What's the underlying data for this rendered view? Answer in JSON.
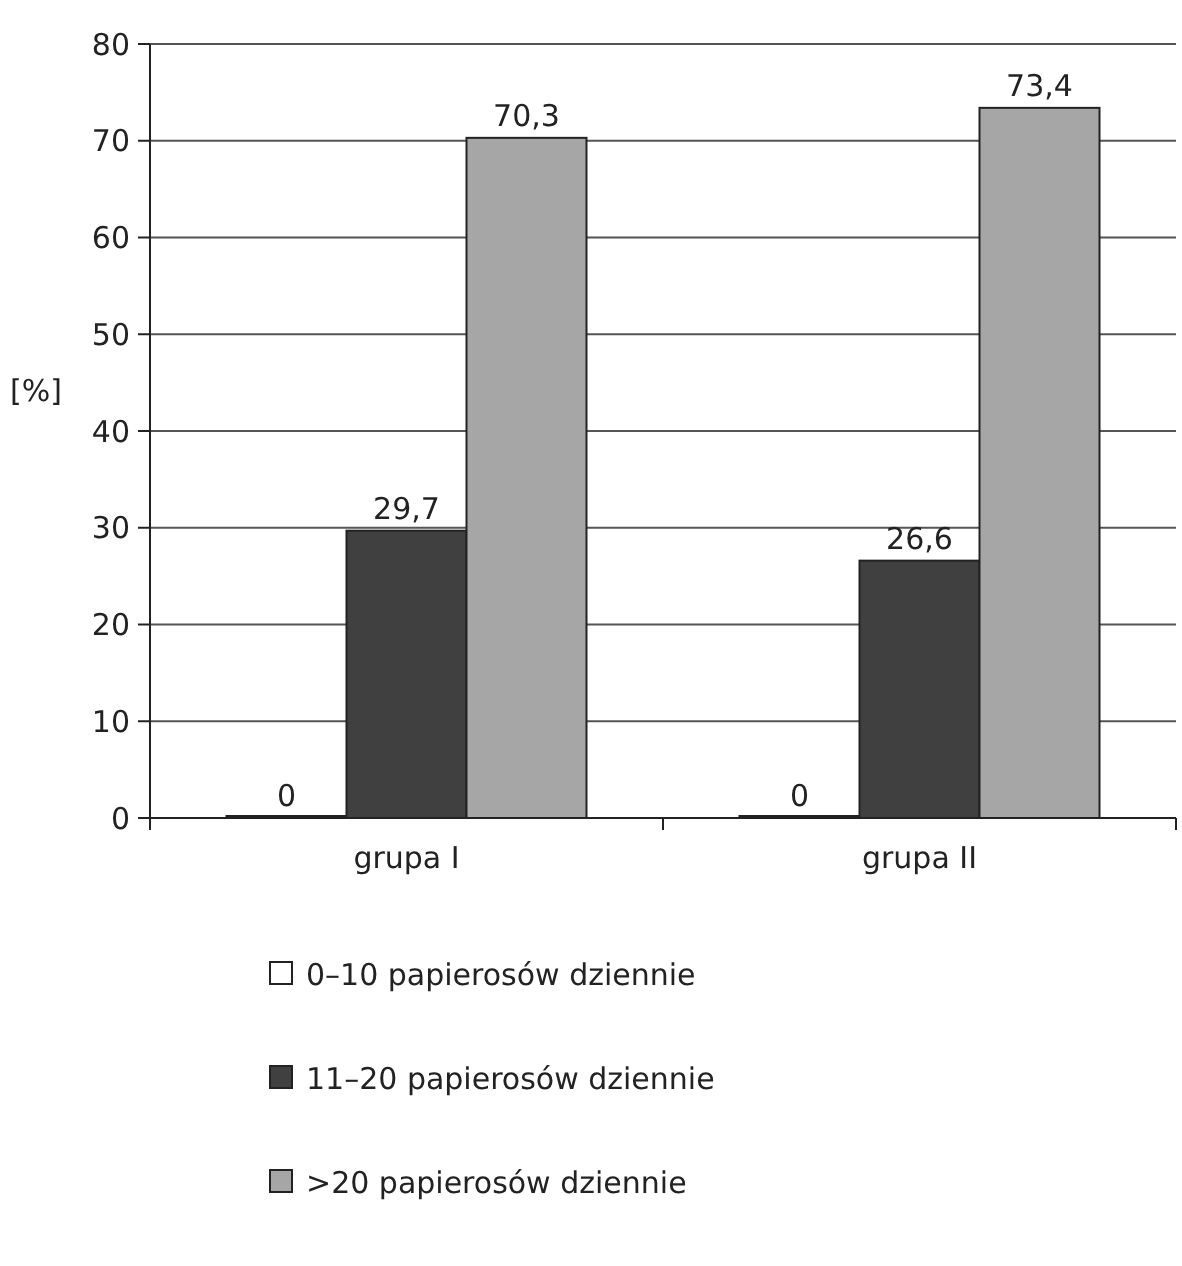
{
  "chart_data": {
    "type": "bar",
    "ylabel": "[%]",
    "categories": [
      "grupa I",
      "grupa II"
    ],
    "series": [
      {
        "name": "0–10 papierosów dziennie",
        "color": "#ffffff",
        "values": [
          0,
          0
        ],
        "value_labels": [
          "0",
          "0"
        ]
      },
      {
        "name": "11–20 papierosów dziennie",
        "color": "#404040",
        "values": [
          29.7,
          26.6
        ],
        "value_labels": [
          "29,7",
          "26,6"
        ]
      },
      {
        "name": ">20 papierosów dziennie",
        "color": "#a6a6a6",
        "values": [
          70.3,
          73.4
        ],
        "value_labels": [
          "70,3",
          "73,4"
        ]
      }
    ],
    "ylim": [
      0,
      80
    ],
    "yticks": [
      0,
      10,
      20,
      30,
      40,
      50,
      60,
      70,
      80
    ],
    "grid": "y",
    "legend": "bottom"
  }
}
